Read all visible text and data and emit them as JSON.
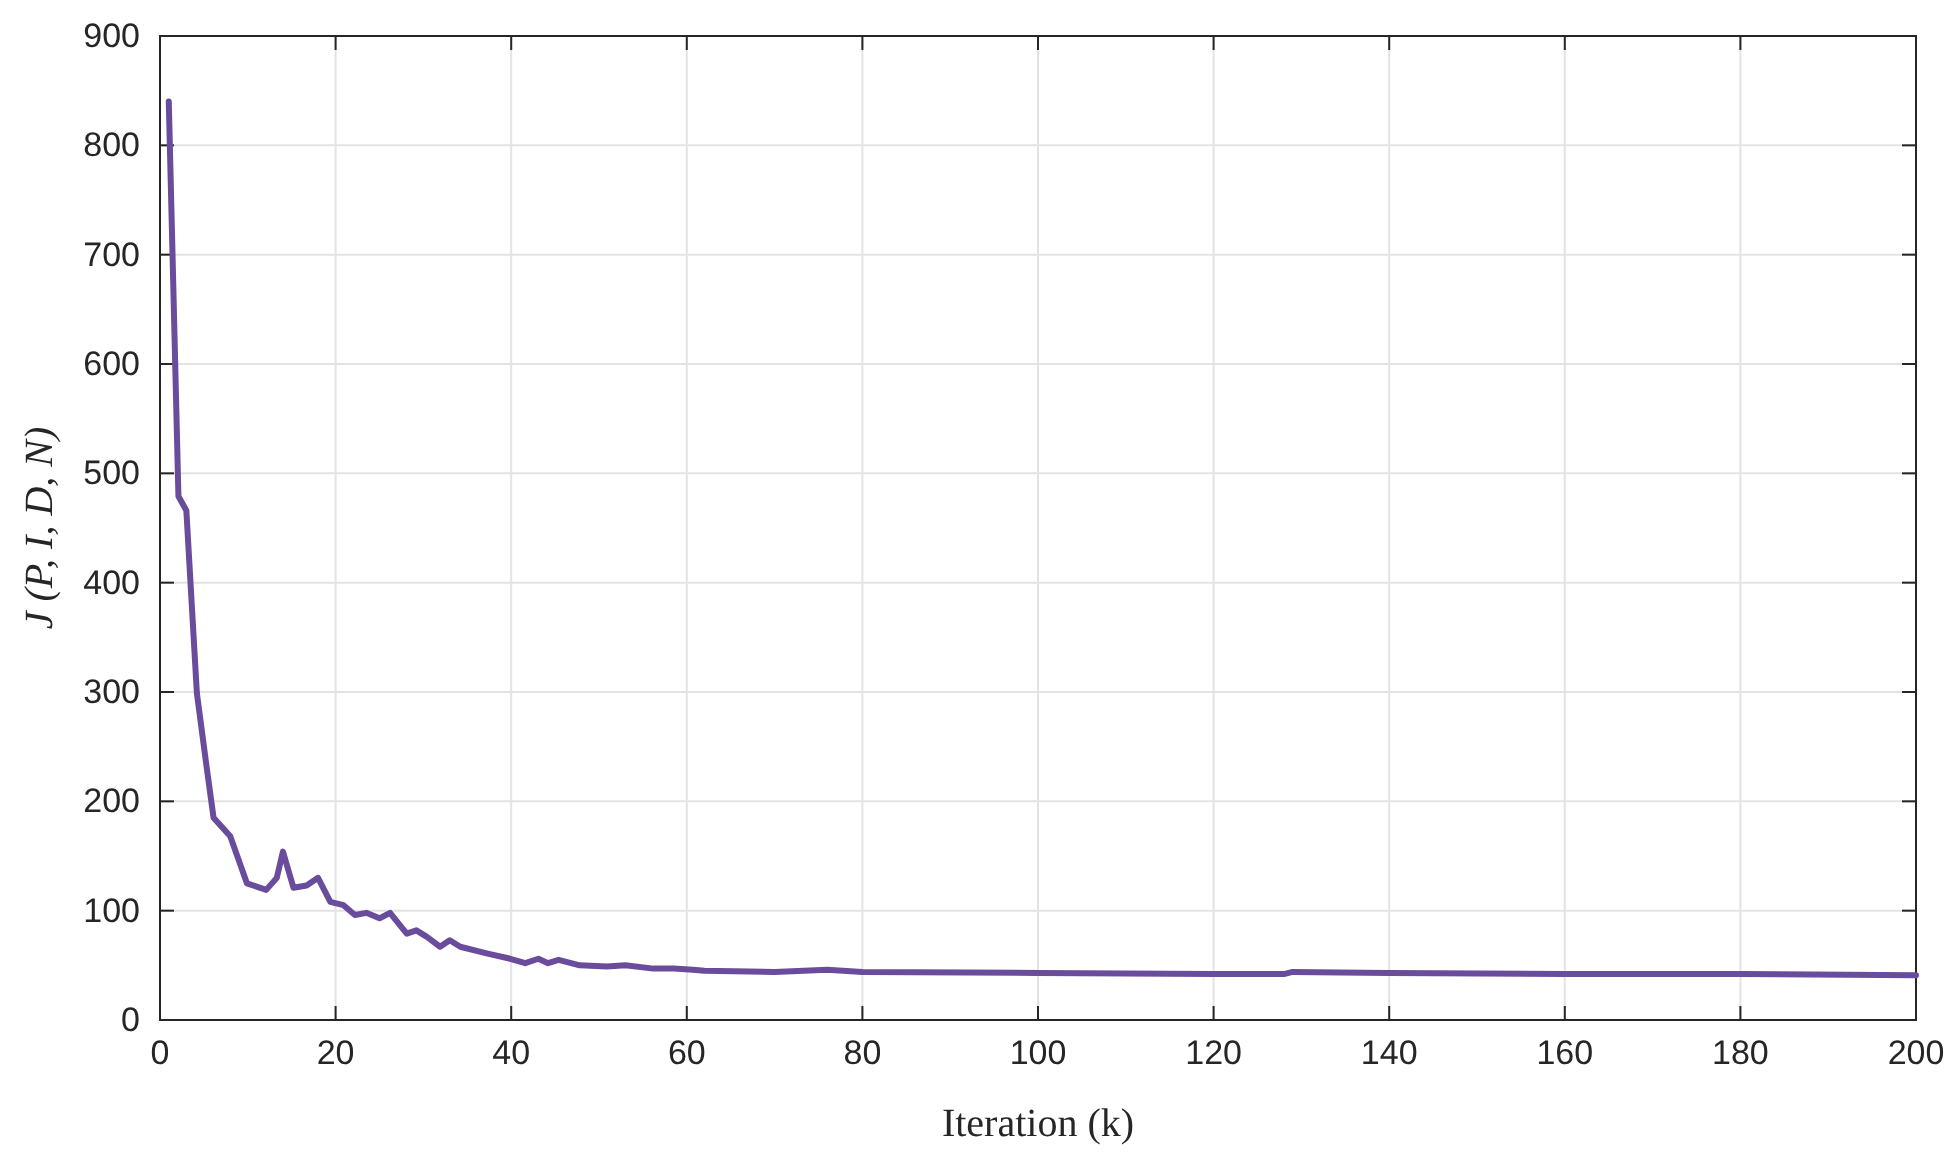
{
  "chart_data": {
    "type": "line",
    "xlabel": "Iteration (k)",
    "ylabel": "J (P, I, D, N)",
    "xlim": [
      0,
      200
    ],
    "ylim": [
      0,
      900
    ],
    "xticks": [
      0,
      20,
      40,
      60,
      80,
      100,
      120,
      140,
      160,
      180,
      200
    ],
    "yticks": [
      0,
      100,
      200,
      300,
      400,
      500,
      600,
      700,
      800,
      900
    ],
    "grid": true,
    "line_style": "solid",
    "series": [
      {
        "color": "#6a4c9c",
        "x": [
          1,
          2.1,
          3,
          4.2,
          5.3,
          6.1,
          8,
          9.9,
          12.1,
          13.3,
          14,
          15.2,
          16.7,
          18,
          19.4,
          20.9,
          22.2,
          23.5,
          25,
          26.2,
          28.1,
          29.2,
          30.4,
          31.9,
          33,
          34.2,
          37.2,
          39.9,
          41.6,
          43.1,
          44.2,
          45.4,
          47.8,
          50.9,
          53,
          56.2,
          58.5,
          60.7,
          62,
          70,
          76,
          80,
          100,
          120,
          128,
          129,
          140,
          160,
          180,
          200
        ],
        "values": [
          840,
          479,
          466,
          299,
          232,
          185,
          168,
          125,
          119,
          130,
          154,
          121,
          123,
          130,
          108,
          105,
          96,
          98,
          93,
          98,
          79,
          82,
          76,
          67,
          73,
          67,
          61,
          56,
          52,
          56,
          52,
          55,
          50,
          49,
          50,
          47,
          47,
          46,
          45,
          44,
          46,
          44,
          43,
          42,
          42,
          44,
          43,
          42,
          42,
          41
        ]
      }
    ]
  }
}
